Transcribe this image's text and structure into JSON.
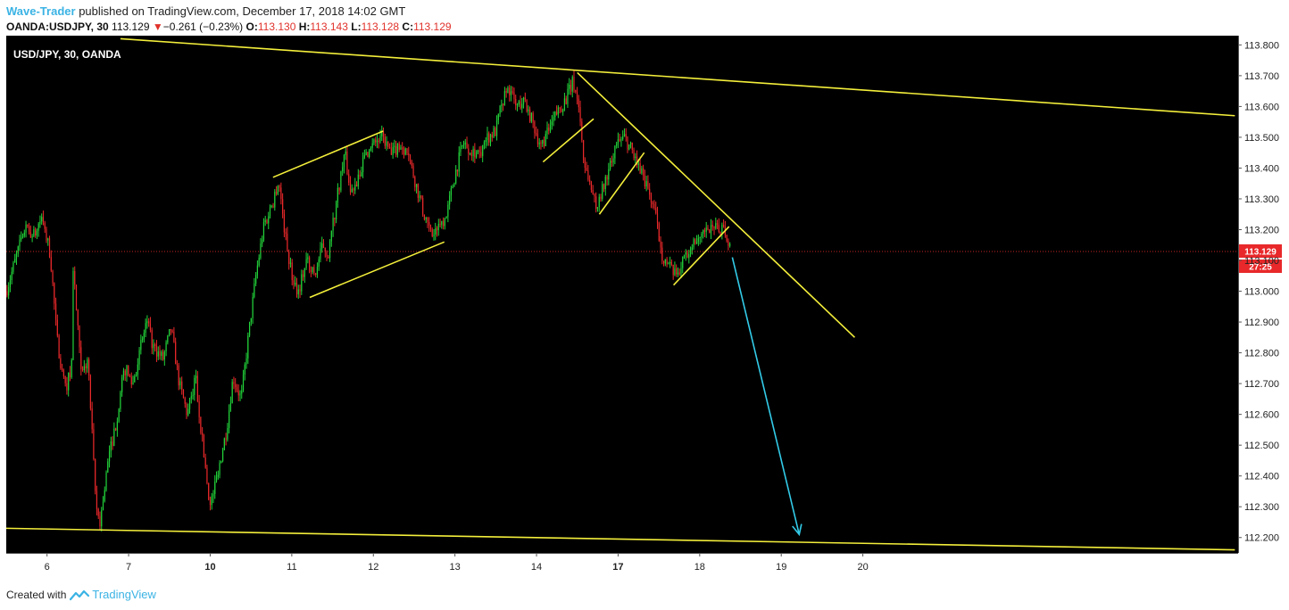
{
  "header": {
    "author": "Wave-Trader",
    "published_text": "published on TradingView.com, December 17, 2018 14:02 GMT",
    "symbol_line": "OANDA:USDJPY, 30",
    "last": "113.129",
    "change": "−0.261 (−0.23%)",
    "o_label": "O:",
    "o_value": "113.130",
    "h_label": "H:",
    "h_value": "113.143",
    "l_label": "L:",
    "l_value": "113.128",
    "c_label": "C:",
    "c_value": "113.129"
  },
  "footer": {
    "created_with": "Created with",
    "brand": "TradingView"
  },
  "colors": {
    "background": "#000000",
    "bull": "#22d33a",
    "bear": "#e8282a",
    "trendline": "#f4ef3b",
    "projection": "#33cbe8",
    "price_line": "#c62424"
  },
  "chart_data": {
    "type": "candlestick",
    "symbol_label": "USD/JPY, 30, OANDA",
    "timeframe": "30",
    "ylim": [
      112.15,
      113.83
    ],
    "y_ticks": [
      112.2,
      112.3,
      112.4,
      112.5,
      112.6,
      112.7,
      112.8,
      112.9,
      113.0,
      113.1,
      113.2,
      113.3,
      113.4,
      113.5,
      113.6,
      113.7,
      113.8
    ],
    "x_domain": [
      5.5,
      20.6
    ],
    "x_ticks": [
      {
        "x": 6,
        "label": "6",
        "bold": false
      },
      {
        "x": 7,
        "label": "7",
        "bold": false
      },
      {
        "x": 8,
        "label": "10",
        "bold": true
      },
      {
        "x": 9,
        "label": "11",
        "bold": false
      },
      {
        "x": 10,
        "label": "12",
        "bold": false
      },
      {
        "x": 11,
        "label": "13",
        "bold": false
      },
      {
        "x": 12,
        "label": "14",
        "bold": false
      },
      {
        "x": 13,
        "label": "17",
        "bold": true
      },
      {
        "x": 14,
        "label": "18",
        "bold": false
      },
      {
        "x": 15,
        "label": "19",
        "bold": false
      },
      {
        "x": 16,
        "label": "20",
        "bold": false
      }
    ],
    "current_price": {
      "value": 113.129,
      "label": "113.129",
      "countdown": "27:25"
    },
    "price_path": [
      [
        5.5,
        113.0
      ],
      [
        5.72,
        113.2
      ],
      [
        5.85,
        113.18
      ],
      [
        5.93,
        113.24
      ],
      [
        6.04,
        113.12
      ],
      [
        6.12,
        112.85
      ],
      [
        6.22,
        112.68
      ],
      [
        6.3,
        112.75
      ],
      [
        6.32,
        113.08
      ],
      [
        6.42,
        112.72
      ],
      [
        6.5,
        112.78
      ],
      [
        6.6,
        112.3
      ],
      [
        6.65,
        112.25
      ],
      [
        6.75,
        112.45
      ],
      [
        6.85,
        112.58
      ],
      [
        6.95,
        112.75
      ],
      [
        7.05,
        112.7
      ],
      [
        7.15,
        112.82
      ],
      [
        7.22,
        112.9
      ],
      [
        7.3,
        112.82
      ],
      [
        7.42,
        112.78
      ],
      [
        7.52,
        112.88
      ],
      [
        7.62,
        112.7
      ],
      [
        7.72,
        112.6
      ],
      [
        7.82,
        112.72
      ],
      [
        7.9,
        112.52
      ],
      [
        8.0,
        112.3
      ],
      [
        8.1,
        112.42
      ],
      [
        8.2,
        112.55
      ],
      [
        8.28,
        112.72
      ],
      [
        8.38,
        112.65
      ],
      [
        8.48,
        112.88
      ],
      [
        8.56,
        113.05
      ],
      [
        8.65,
        113.2
      ],
      [
        8.75,
        113.28
      ],
      [
        8.84,
        113.36
      ],
      [
        8.92,
        113.18
      ],
      [
        9.0,
        113.05
      ],
      [
        9.08,
        113.0
      ],
      [
        9.18,
        113.1
      ],
      [
        9.28,
        113.05
      ],
      [
        9.38,
        113.15
      ],
      [
        9.45,
        113.12
      ],
      [
        9.55,
        113.3
      ],
      [
        9.65,
        113.45
      ],
      [
        9.72,
        113.32
      ],
      [
        9.82,
        113.38
      ],
      [
        9.92,
        113.45
      ],
      [
        10.02,
        113.48
      ],
      [
        10.12,
        113.5
      ],
      [
        10.22,
        113.44
      ],
      [
        10.32,
        113.48
      ],
      [
        10.42,
        113.45
      ],
      [
        10.52,
        113.35
      ],
      [
        10.62,
        113.25
      ],
      [
        10.72,
        113.18
      ],
      [
        10.82,
        113.22
      ],
      [
        10.9,
        113.25
      ],
      [
        11.0,
        113.38
      ],
      [
        11.1,
        113.48
      ],
      [
        11.2,
        113.46
      ],
      [
        11.3,
        113.45
      ],
      [
        11.4,
        113.5
      ],
      [
        11.5,
        113.52
      ],
      [
        11.58,
        113.62
      ],
      [
        11.66,
        113.66
      ],
      [
        11.75,
        113.6
      ],
      [
        11.85,
        113.62
      ],
      [
        11.95,
        113.55
      ],
      [
        12.05,
        113.47
      ],
      [
        12.15,
        113.52
      ],
      [
        12.25,
        113.58
      ],
      [
        12.35,
        113.62
      ],
      [
        12.45,
        113.68
      ],
      [
        12.52,
        113.6
      ],
      [
        12.58,
        113.42
      ],
      [
        12.66,
        113.35
      ],
      [
        12.74,
        113.26
      ],
      [
        12.82,
        113.34
      ],
      [
        12.92,
        113.42
      ],
      [
        13.0,
        113.48
      ],
      [
        13.08,
        113.5
      ],
      [
        13.16,
        113.46
      ],
      [
        13.24,
        113.42
      ],
      [
        13.34,
        113.35
      ],
      [
        13.44,
        113.27
      ],
      [
        13.54,
        113.12
      ],
      [
        13.62,
        113.08
      ],
      [
        13.7,
        113.05
      ],
      [
        13.8,
        113.1
      ],
      [
        13.9,
        113.15
      ],
      [
        14.0,
        113.17
      ],
      [
        14.1,
        113.19
      ],
      [
        14.2,
        113.2
      ],
      [
        14.3,
        113.21
      ],
      [
        14.38,
        113.13
      ]
    ],
    "trendlines": [
      {
        "name": "upper-channel-line",
        "points": [
          [
            6.9,
            113.82
          ],
          [
            20.56,
            113.57
          ]
        ],
        "color": "#f4ef3b"
      },
      {
        "name": "lower-channel-line",
        "points": [
          [
            5.5,
            112.23
          ],
          [
            20.56,
            112.16
          ]
        ],
        "color": "#f4ef3b"
      },
      {
        "name": "descending-trendline",
        "points": [
          [
            12.5,
            113.71
          ],
          [
            15.9,
            112.85
          ]
        ],
        "color": "#f4ef3b"
      },
      {
        "name": "channel-upper-1",
        "points": [
          [
            8.77,
            113.37
          ],
          [
            10.12,
            113.52
          ]
        ],
        "color": "#f4ef3b"
      },
      {
        "name": "channel-lower-1",
        "points": [
          [
            9.22,
            112.98
          ],
          [
            10.87,
            113.16
          ]
        ],
        "color": "#f4ef3b"
      },
      {
        "name": "flag-line-1",
        "points": [
          [
            12.08,
            113.42
          ],
          [
            12.7,
            113.56
          ]
        ],
        "color": "#f4ef3b"
      },
      {
        "name": "flag-line-2",
        "points": [
          [
            12.77,
            113.25
          ],
          [
            13.32,
            113.45
          ]
        ],
        "color": "#f4ef3b"
      },
      {
        "name": "flag-line-3",
        "points": [
          [
            13.68,
            113.02
          ],
          [
            14.36,
            113.21
          ]
        ],
        "color": "#f4ef3b"
      }
    ],
    "projection_arrow": {
      "from": [
        14.4,
        113.11
      ],
      "to": [
        15.22,
        112.21
      ],
      "color": "#33cbe8"
    }
  }
}
